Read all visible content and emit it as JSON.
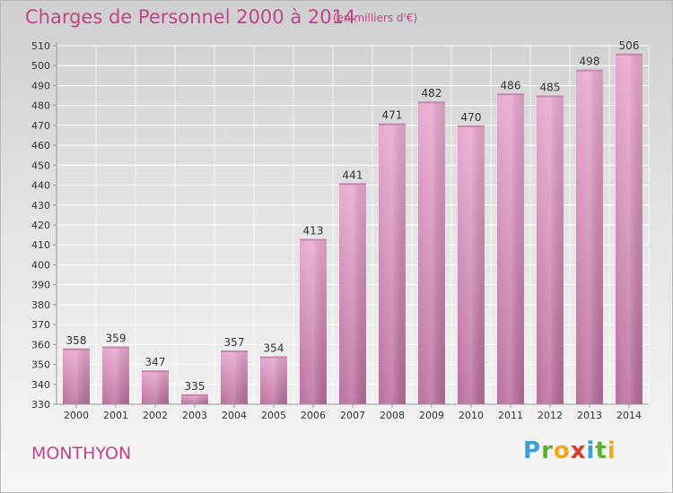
{
  "header": {
    "title": "Charges de Personnel 2000 à 2014",
    "subtitle": "(en milliers d'€)"
  },
  "footer": {
    "town": "MONTHYON",
    "logo_text": "Proxiti",
    "logo_letters": [
      {
        "ch": "P",
        "color": "#3aa0d8"
      },
      {
        "ch": "r",
        "color": "#5cb02e"
      },
      {
        "ch": "o",
        "color": "#f2a81d"
      },
      {
        "ch": "x",
        "color": "#d93b2b"
      },
      {
        "ch": "i",
        "color": "#3aa0d8"
      },
      {
        "ch": "t",
        "color": "#5cb02e"
      },
      {
        "ch": "i",
        "color": "#f2a81d"
      }
    ]
  },
  "colors": {
    "accent": "#c2448a",
    "bar_top": "#e8a6cc",
    "bar_bottom": "#b56a99",
    "grid": "#ffffff",
    "text": "#333333"
  },
  "chart_data": {
    "type": "bar",
    "title": "Charges de Personnel 2000 à 2014",
    "subtitle": "(en milliers d'€)",
    "categories": [
      "2000",
      "2001",
      "2002",
      "2003",
      "2004",
      "2005",
      "2006",
      "2007",
      "2008",
      "2009",
      "2010",
      "2011",
      "2012",
      "2013",
      "2014"
    ],
    "values": [
      358,
      359,
      347,
      335,
      357,
      354,
      413,
      441,
      471,
      482,
      470,
      486,
      485,
      498,
      506
    ],
    "ylim": [
      330,
      510
    ],
    "yticks": [
      330,
      340,
      350,
      360,
      370,
      380,
      390,
      400,
      410,
      420,
      430,
      440,
      450,
      460,
      470,
      480,
      490,
      500,
      510
    ],
    "grid": true,
    "legend": "none"
  }
}
